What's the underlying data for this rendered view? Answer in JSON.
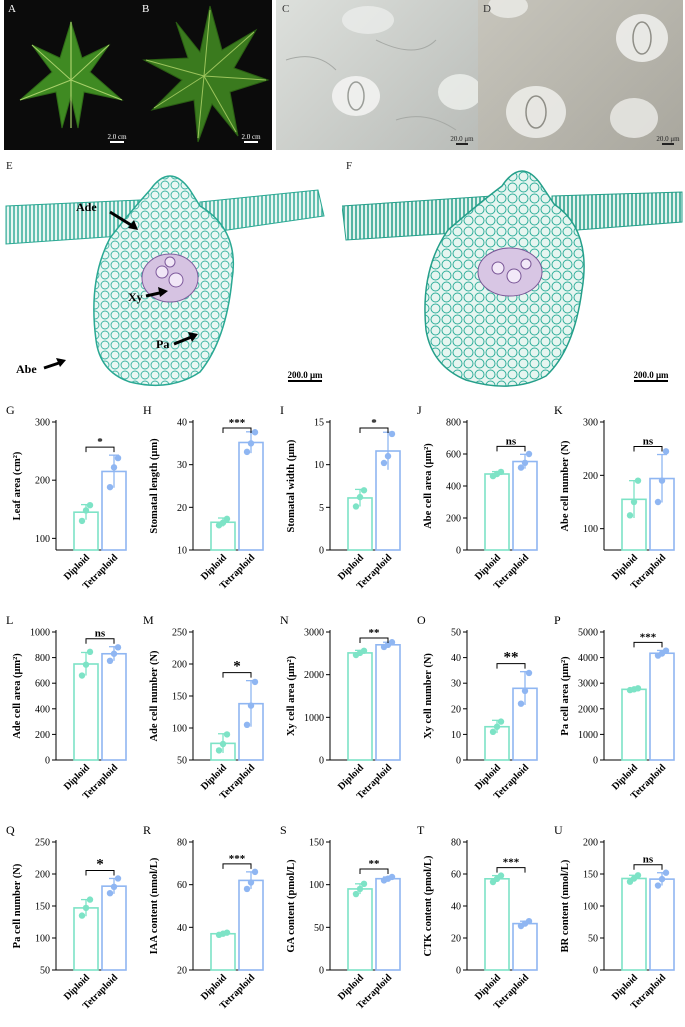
{
  "panels": {
    "A": {
      "letter": "A",
      "scale": "2.0 cm"
    },
    "B": {
      "letter": "B",
      "scale": "2.0 cm"
    },
    "C": {
      "letter": "C",
      "scale": "20.0 μm"
    },
    "D": {
      "letter": "D",
      "scale": "20.0 μm"
    },
    "E": {
      "letter": "E",
      "scale": "200.0 μm",
      "labels": {
        "ade": "Ade",
        "xy": "Xy",
        "pa": "Pa",
        "abe": "Abe"
      }
    },
    "F": {
      "letter": "F",
      "scale": "200.0 μm"
    }
  },
  "colors": {
    "diploid": "#7de3c6",
    "tetraploid": "#8fb6f2",
    "leaf_bg": "#0a0a0a",
    "leaf_green": "#3e7f1e",
    "micrograph": "#c9ccc8",
    "section_cyan": "#35b6a4"
  },
  "chart_data": [
    {
      "panel": "G",
      "type": "bar",
      "ylabel": "Leaf area (cm²)",
      "categories": [
        "Diploid",
        "Tetraploid"
      ],
      "values": [
        145,
        215
      ],
      "errors": [
        13,
        28
      ],
      "points": [
        [
          130,
          148,
          157
        ],
        [
          188,
          222,
          238
        ]
      ],
      "yticks": [
        100,
        200,
        300
      ],
      "ylim": [
        80,
        300
      ],
      "sig": "*"
    },
    {
      "panel": "H",
      "type": "bar",
      "ylabel": "Stomatal length (μm)",
      "categories": [
        "Diploid",
        "Tetraploid"
      ],
      "values": [
        16.5,
        35.2
      ],
      "errors": [
        1.0,
        2.5
      ],
      "points": [
        [
          15.8,
          16.4,
          17.3
        ],
        [
          33.0,
          35.0,
          37.6
        ]
      ],
      "yticks": [
        10,
        20,
        30,
        40
      ],
      "ylim": [
        10,
        40
      ],
      "sig": "***"
    },
    {
      "panel": "I",
      "type": "bar",
      "ylabel": "Stomatal width (μm)",
      "categories": [
        "Diploid",
        "Tetraploid"
      ],
      "values": [
        6.1,
        11.6
      ],
      "errors": [
        1.0,
        2.2
      ],
      "points": [
        [
          5.1,
          6.2,
          7.0
        ],
        [
          10.2,
          11.0,
          13.6
        ]
      ],
      "yticks": [
        0,
        5,
        10,
        15
      ],
      "ylim": [
        0,
        15
      ],
      "sig": "*"
    },
    {
      "panel": "J",
      "type": "bar",
      "ylabel": "Abe cell area (μm²)",
      "categories": [
        "Diploid",
        "Tetraploid"
      ],
      "values": [
        475,
        553
      ],
      "errors": [
        15,
        45
      ],
      "points": [
        [
          462,
          475,
          488
        ],
        [
          515,
          545,
          600
        ]
      ],
      "yticks": [
        0,
        200,
        400,
        600,
        800
      ],
      "ylim": [
        0,
        800
      ],
      "sig": "ns"
    },
    {
      "panel": "K",
      "type": "bar",
      "ylabel": "Abe cell number (N)",
      "categories": [
        "Diploid",
        "Tetraploid"
      ],
      "values": [
        155,
        194
      ],
      "errors": [
        35,
        45
      ],
      "points": [
        [
          125,
          150,
          190
        ],
        [
          150,
          190,
          245
        ]
      ],
      "yticks": [
        100,
        200,
        300
      ],
      "ylim": [
        60,
        300
      ],
      "sig": "ns"
    },
    {
      "panel": "L",
      "type": "bar",
      "ylabel": "Ade cell area (μm²)",
      "categories": [
        "Diploid",
        "Tetraploid"
      ],
      "values": [
        750,
        830
      ],
      "errors": [
        90,
        55
      ],
      "points": [
        [
          660,
          745,
          845
        ],
        [
          775,
          830,
          880
        ]
      ],
      "yticks": [
        0,
        200,
        400,
        600,
        800,
        1000
      ],
      "ylim": [
        0,
        1000
      ],
      "sig": "ns"
    },
    {
      "panel": "M",
      "type": "bar",
      "ylabel": "Ade cell number (N)",
      "categories": [
        "Diploid",
        "Tetraploid"
      ],
      "values": [
        76,
        138
      ],
      "errors": [
        15,
        36
      ],
      "points": [
        [
          65,
          75,
          90
        ],
        [
          105,
          135,
          172
        ]
      ],
      "yticks": [
        50,
        100,
        150,
        200,
        250
      ],
      "ylim": [
        50,
        250
      ],
      "sig": "*"
    },
    {
      "panel": "N",
      "type": "bar",
      "ylabel": "Xy cell area (μm²)",
      "categories": [
        "Diploid",
        "Tetraploid"
      ],
      "values": [
        2510,
        2700
      ],
      "errors": [
        60,
        60
      ],
      "points": [
        [
          2460,
          2510,
          2560
        ],
        [
          2650,
          2700,
          2760
        ]
      ],
      "yticks": [
        0,
        1000,
        2000,
        3000
      ],
      "ylim": [
        0,
        3000
      ],
      "sig": "**"
    },
    {
      "panel": "O",
      "type": "bar",
      "ylabel": "Xy cell number (N)",
      "categories": [
        "Diploid",
        "Tetraploid"
      ],
      "values": [
        13,
        28
      ],
      "errors": [
        2.5,
        6.5
      ],
      "points": [
        [
          11,
          13,
          15
        ],
        [
          22,
          27,
          34
        ]
      ],
      "yticks": [
        0,
        10,
        20,
        30,
        40,
        50
      ],
      "ylim": [
        0,
        50
      ],
      "sig": "**"
    },
    {
      "panel": "P",
      "type": "bar",
      "ylabel": "Pa cell area (μm²)",
      "categories": [
        "Diploid",
        "Tetraploid"
      ],
      "values": [
        2760,
        4170
      ],
      "errors": [
        40,
        110
      ],
      "points": [
        [
          2730,
          2760,
          2800
        ],
        [
          4080,
          4160,
          4270
        ]
      ],
      "yticks": [
        0,
        1000,
        2000,
        3000,
        4000,
        5000
      ],
      "ylim": [
        0,
        5000
      ],
      "sig": "***"
    },
    {
      "panel": "Q",
      "type": "bar",
      "ylabel": "Pa cell number (N)",
      "categories": [
        "Diploid",
        "Tetraploid"
      ],
      "values": [
        147,
        181
      ],
      "errors": [
        13,
        12
      ],
      "points": [
        [
          135,
          147,
          160
        ],
        [
          170,
          180,
          193
        ]
      ],
      "yticks": [
        50,
        100,
        150,
        200,
        250
      ],
      "ylim": [
        50,
        250
      ],
      "sig": "*"
    },
    {
      "panel": "R",
      "type": "bar",
      "ylabel": "IAA content (nmol/L)",
      "categories": [
        "Diploid",
        "Tetraploid"
      ],
      "values": [
        37,
        62
      ],
      "errors": [
        0.5,
        4
      ],
      "points": [
        [
          36.5,
          37,
          37.5
        ],
        [
          58,
          61,
          66
        ]
      ],
      "yticks": [
        20,
        40,
        60,
        80
      ],
      "ylim": [
        20,
        80
      ],
      "sig": "***"
    },
    {
      "panel": "S",
      "type": "bar",
      "ylabel": "GA content (pmol/L)",
      "categories": [
        "Diploid",
        "Tetraploid"
      ],
      "values": [
        95,
        107
      ],
      "errors": [
        6,
        2
      ],
      "points": [
        [
          89,
          95,
          101
        ],
        [
          105,
          107,
          109
        ]
      ],
      "yticks": [
        0,
        50,
        100,
        150
      ],
      "ylim": [
        0,
        150
      ],
      "sig": "**"
    },
    {
      "panel": "T",
      "type": "bar",
      "ylabel": "CTK content (pmol/L)",
      "categories": [
        "Diploid",
        "Tetraploid"
      ],
      "values": [
        57,
        29
      ],
      "errors": [
        2,
        1.5
      ],
      "points": [
        [
          55,
          57,
          59
        ],
        [
          27.5,
          29,
          30.5
        ]
      ],
      "yticks": [
        0,
        20,
        40,
        60,
        80
      ],
      "ylim": [
        0,
        80
      ],
      "sig": "***"
    },
    {
      "panel": "U",
      "type": "bar",
      "ylabel": "BR content (nmol/L)",
      "categories": [
        "Diploid",
        "Tetraploid"
      ],
      "values": [
        143,
        142
      ],
      "errors": [
        5,
        10
      ],
      "points": [
        [
          138,
          143,
          148
        ],
        [
          132,
          142,
          152
        ]
      ],
      "yticks": [
        0,
        50,
        100,
        150,
        200
      ],
      "ylim": [
        0,
        200
      ],
      "sig": "ns"
    }
  ]
}
